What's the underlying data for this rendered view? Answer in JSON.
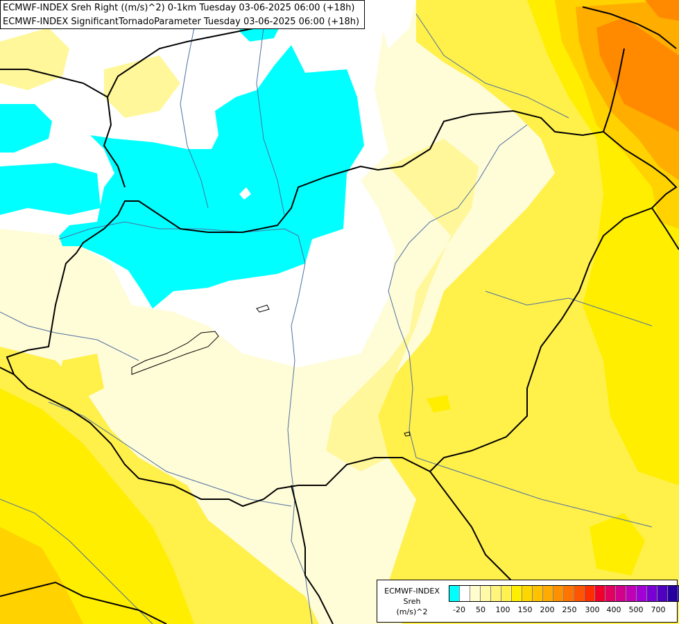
{
  "header": {
    "line1": "ECMWF-INDEX Sreh Right ((m/s)^2) 0-1km Tuesday 03-06-2025 06:00 (+18h)",
    "line2": "ECMWF-INDEX SignificantTornadoParameter Tuesday 03-06-2025 06:00 (+18h)"
  },
  "legend": {
    "name_line1": "ECMWF-INDEX",
    "name_line2": "Sreh",
    "name_line3": "(m/s)^2",
    "colors": [
      "#00ffff",
      "#ffffff",
      "#fffccd",
      "#fff9a8",
      "#fff57c",
      "#fff24e",
      "#ffee00",
      "#ffd700",
      "#ffc200",
      "#ffab00",
      "#ff9000",
      "#ff7400",
      "#ff5500",
      "#ff2e00",
      "#f2002c",
      "#e20060",
      "#d3008c",
      "#c000b7",
      "#a100d6",
      "#7800d4",
      "#4f00c0",
      "#26009f",
      "#00007e"
    ],
    "ticks": [
      "-20",
      "50",
      "100",
      "150",
      "200",
      "250",
      "300",
      "400",
      "500",
      "700"
    ]
  },
  "map": {
    "colors": {
      "background": "#fffcd8",
      "white": "#ffffff",
      "cyan": "#00ffff",
      "yellow_light": "#fff79a",
      "yellow": "#fff04a",
      "yellow_strong": "#ffee00",
      "gold": "#ffd200",
      "orange": "#ffae00",
      "orange_dark": "#ff8a00",
      "border": "#000000",
      "river": "#4c6fa0"
    }
  }
}
